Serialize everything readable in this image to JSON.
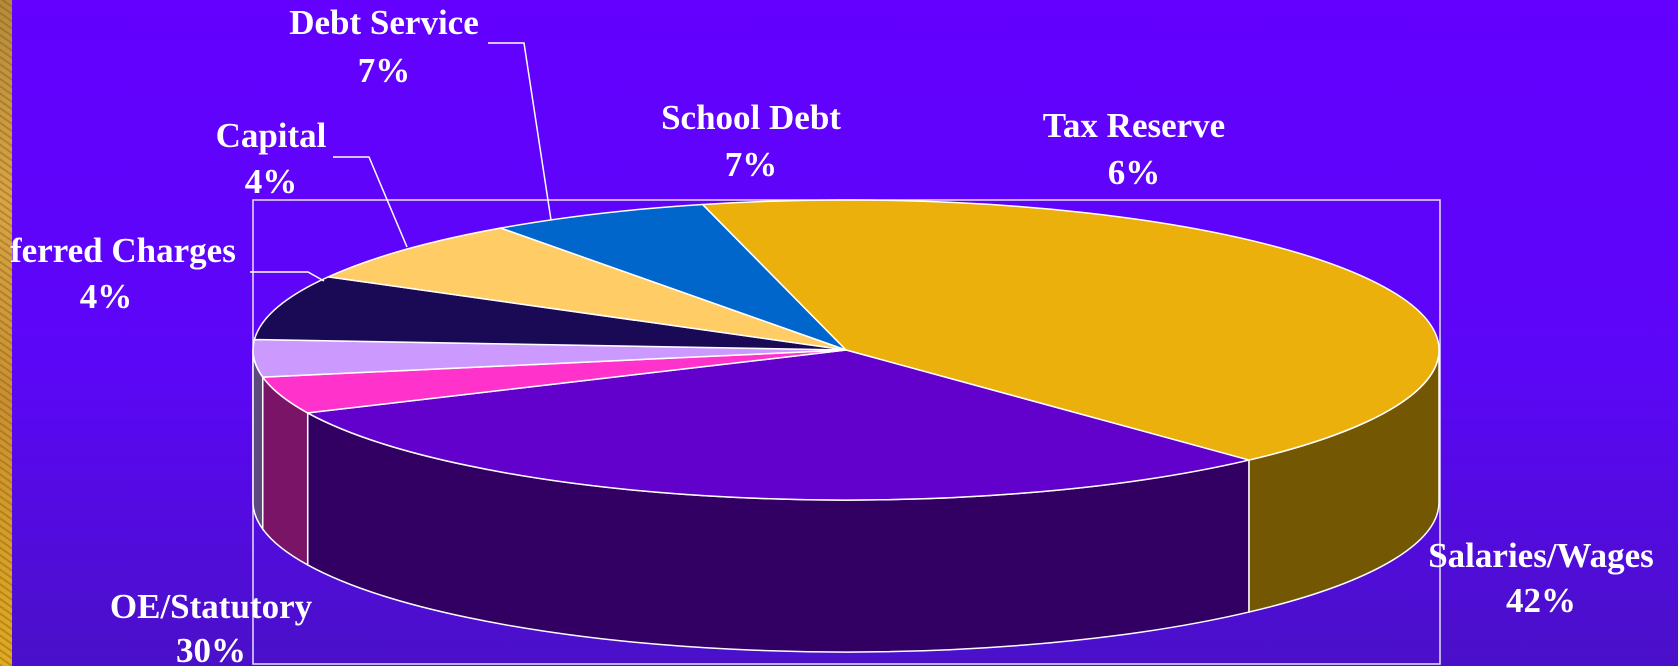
{
  "chart_data": {
    "type": "pie",
    "title": "",
    "slices": [
      {
        "label": "Salaries/Wages",
        "percent_label": "42%",
        "value": 42,
        "color": "#ecb00c",
        "side_color": "#735703"
      },
      {
        "label": "OE/Statutory",
        "percent_label": "30%",
        "value": 30,
        "color": "#6200cc",
        "side_color": "#320063"
      },
      {
        "label": "Deferred Charges",
        "visible_label": "ferred Charges",
        "percent_label": "4%",
        "value": 4,
        "color": "#ff33cc",
        "side_color": "#7a1466"
      },
      {
        "label": "Capital",
        "percent_label": "4%",
        "value": 4,
        "color": "#cc99ff",
        "side_color": "#5f4a80"
      },
      {
        "label": "Debt Service",
        "percent_label": "7%",
        "value": 7,
        "color": "#1a0a55",
        "side_color": "#0d0530"
      },
      {
        "label": "School Debt",
        "percent_label": "7%",
        "value": 7,
        "color": "#ffcc66",
        "side_color": "#806633"
      },
      {
        "label": "Tax Reserve",
        "percent_label": "6%",
        "value": 6,
        "color": "#0066cc",
        "side_color": "#00336b"
      }
    ],
    "label_color": "#ffffff",
    "outline_color": "#ffffff",
    "legend": "none",
    "grid": false
  }
}
